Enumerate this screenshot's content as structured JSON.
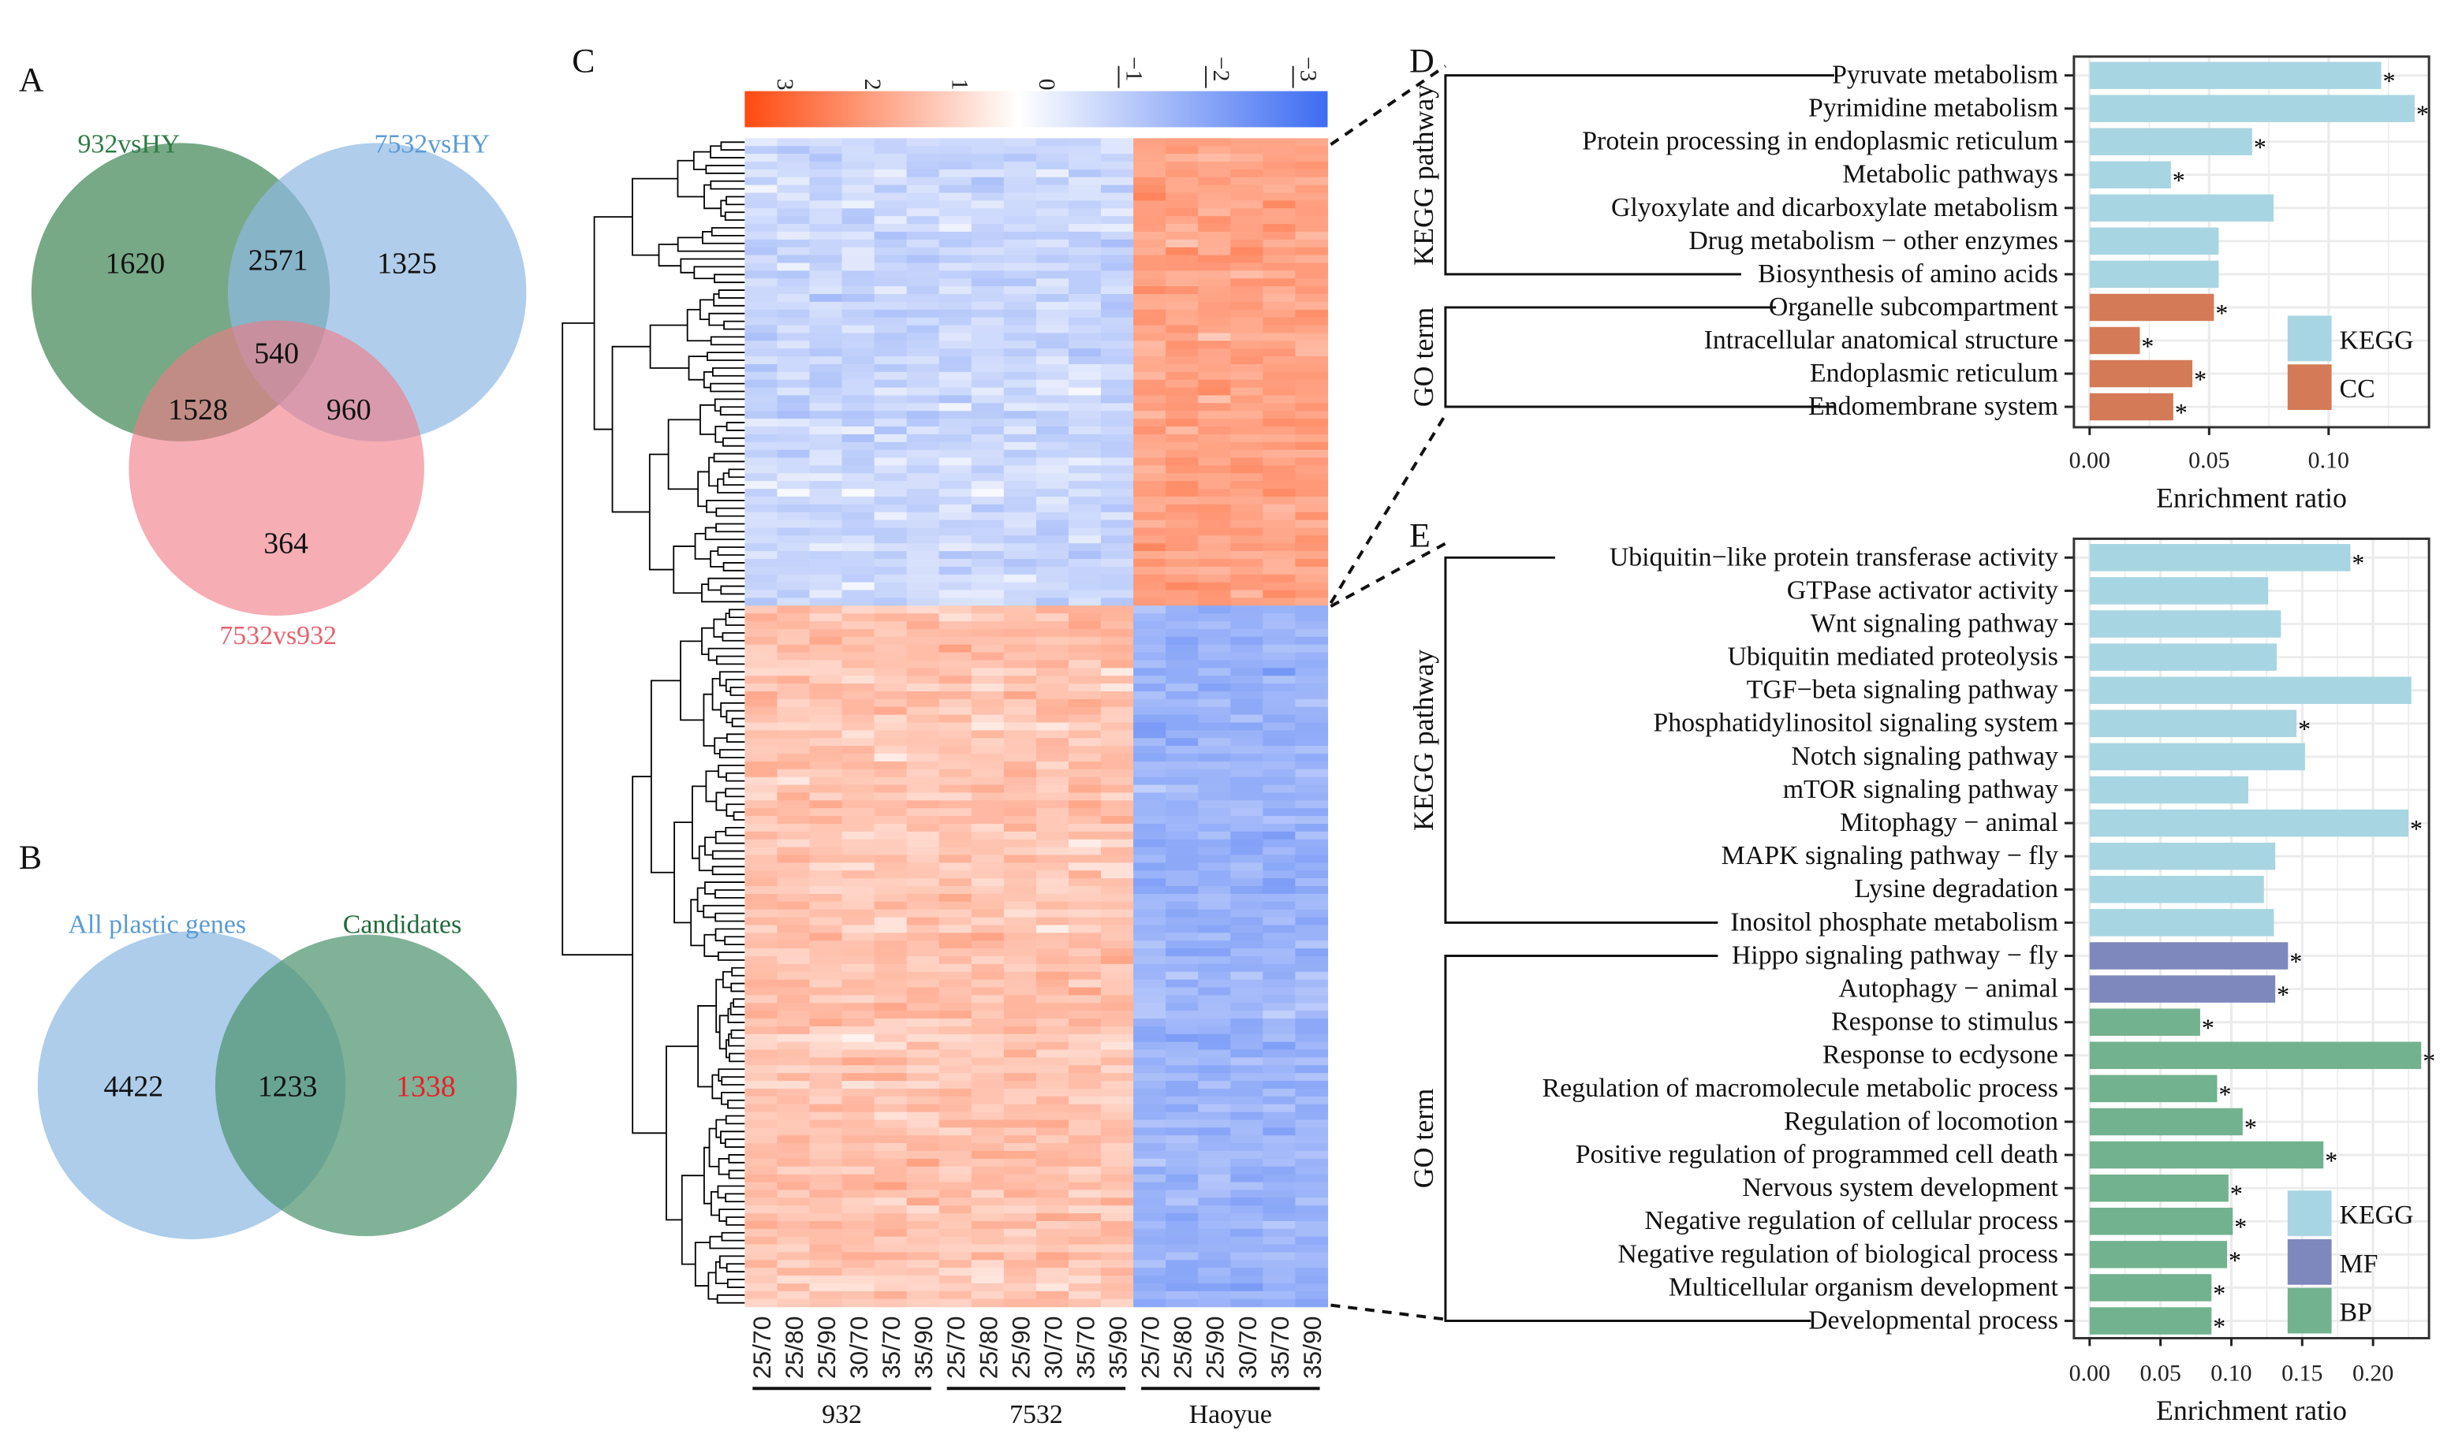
{
  "panels": {
    "a": "A",
    "b": "B",
    "c": "C",
    "d": "D",
    "e": "E"
  },
  "chart_data": [
    {
      "type": "venn",
      "panel": "A",
      "sets": [
        {
          "name": "932vsHY",
          "color": "#2e7d46"
        },
        {
          "name": "7532vsHY",
          "color": "#5b9bd5"
        },
        {
          "name": "7532vs932",
          "color": "#e8606e"
        }
      ],
      "regions": {
        "only_932vsHY": 1620,
        "only_7532vsHY": 1325,
        "only_7532vs932": 364,
        "932vsHY_7532vsHY": 2571,
        "932vsHY_7532vs932": 1528,
        "7532vsHY_7532vs932": 960,
        "all": 540
      }
    },
    {
      "type": "venn",
      "panel": "B",
      "sets": [
        {
          "name": "All plastic genes",
          "color": "#5b9bd5"
        },
        {
          "name": "Candidates",
          "color": "#1f6b3a"
        }
      ],
      "regions": {
        "only_all_plastic_genes": 4422,
        "both": 1233,
        "only_candidates": 1338
      },
      "highlight_color": "#e8202a"
    },
    {
      "type": "heatmap",
      "panel": "C",
      "color_scale": {
        "ticks": [
          "3",
          "2",
          "1",
          "0",
          "−1",
          "−2",
          "−3"
        ],
        "range": [
          3,
          -3
        ],
        "low_color": "#3d6cf2",
        "high_color": "#ff4a10"
      },
      "columns": [
        "25/70",
        "25/80",
        "25/90",
        "30/70",
        "35/70",
        "35/90",
        "25/70",
        "25/80",
        "25/90",
        "30/70",
        "35/70",
        "35/90",
        "25/70",
        "25/80",
        "25/90",
        "30/70",
        "35/70",
        "35/90"
      ],
      "groups": [
        "932",
        "7532",
        "Haoyue"
      ]
    },
    {
      "type": "bar",
      "orientation": "horizontal",
      "panel": "D",
      "xlabel": "Enrichment ratio",
      "xlim": [
        0,
        0.14
      ],
      "xticks": [
        "0.00",
        "0.05",
        "0.10"
      ],
      "xtick_values": [
        0,
        0.05,
        0.1
      ],
      "group_labels": [
        {
          "label": "KEGG pathway",
          "from": 0,
          "to": 6
        },
        {
          "label": "GO term",
          "from": 7,
          "to": 10
        }
      ],
      "legend": [
        {
          "label": "KEGG",
          "color": "#a8d5e2"
        },
        {
          "label": "CC",
          "color": "#d47a56"
        }
      ],
      "bars": [
        {
          "label": "Pyruvate metabolism",
          "value": 0.122,
          "cat": "KEGG",
          "sig": "*"
        },
        {
          "label": "Pyrimidine metabolism",
          "value": 0.136,
          "cat": "KEGG",
          "sig": "*"
        },
        {
          "label": "Protein processing in endoplasmic reticulum",
          "value": 0.068,
          "cat": "KEGG",
          "sig": "*"
        },
        {
          "label": "Metabolic pathways",
          "value": 0.034,
          "cat": "KEGG",
          "sig": "*"
        },
        {
          "label": "Glyoxylate and dicarboxylate metabolism",
          "value": 0.077,
          "cat": "KEGG",
          "sig": ""
        },
        {
          "label": "Drug metabolism − other enzymes",
          "value": 0.054,
          "cat": "KEGG",
          "sig": ""
        },
        {
          "label": "Biosynthesis of amino acids",
          "value": 0.054,
          "cat": "KEGG",
          "sig": ""
        },
        {
          "label": "Organelle subcompartment",
          "value": 0.052,
          "cat": "CC",
          "sig": "*"
        },
        {
          "label": "Intracellular anatomical structure",
          "value": 0.021,
          "cat": "CC",
          "sig": "*"
        },
        {
          "label": "Endoplasmic reticulum",
          "value": 0.043,
          "cat": "CC",
          "sig": "*"
        },
        {
          "label": "Endomembrane system",
          "value": 0.035,
          "cat": "CC",
          "sig": "*"
        }
      ]
    },
    {
      "type": "bar",
      "orientation": "horizontal",
      "panel": "E",
      "xlabel": "Enrichment ratio",
      "xlim": [
        0,
        0.24
      ],
      "xticks": [
        "0.00",
        "0.05",
        "0.10",
        "0.15",
        "0.20"
      ],
      "xtick_values": [
        0,
        0.05,
        0.1,
        0.15,
        0.2
      ],
      "group_labels": [
        {
          "label": "KEGG pathway",
          "from": 0,
          "to": 11
        },
        {
          "label": "GO term",
          "from": 12,
          "to": 23
        }
      ],
      "legend": [
        {
          "label": "KEGG",
          "color": "#a8d5e2"
        },
        {
          "label": "MF",
          "color": "#7f88bd"
        },
        {
          "label": "BP",
          "color": "#72b28f"
        }
      ],
      "bars": [
        {
          "label": "Ubiquitin−like protein transferase activity",
          "value": 0.184,
          "cat": "KEGG",
          "sig": "*"
        },
        {
          "label": "GTPase activator activity",
          "value": 0.126,
          "cat": "KEGG",
          "sig": ""
        },
        {
          "label": "Wnt signaling pathway",
          "value": 0.135,
          "cat": "KEGG",
          "sig": ""
        },
        {
          "label": "Ubiquitin mediated proteolysis",
          "value": 0.132,
          "cat": "KEGG",
          "sig": ""
        },
        {
          "label": "TGF−beta signaling pathway",
          "value": 0.227,
          "cat": "KEGG",
          "sig": ""
        },
        {
          "label": "Phosphatidylinositol signaling system",
          "value": 0.146,
          "cat": "KEGG",
          "sig": "*"
        },
        {
          "label": "Notch signaling pathway",
          "value": 0.152,
          "cat": "KEGG",
          "sig": ""
        },
        {
          "label": "mTOR signaling pathway",
          "value": 0.112,
          "cat": "KEGG",
          "sig": ""
        },
        {
          "label": "Mitophagy − animal",
          "value": 0.225,
          "cat": "KEGG",
          "sig": "*"
        },
        {
          "label": "MAPK signaling pathway − fly",
          "value": 0.131,
          "cat": "KEGG",
          "sig": ""
        },
        {
          "label": "Lysine degradation",
          "value": 0.123,
          "cat": "KEGG",
          "sig": ""
        },
        {
          "label": "Inositol phosphate metabolism",
          "value": 0.13,
          "cat": "KEGG",
          "sig": ""
        },
        {
          "label": "Hippo signaling pathway − fly",
          "value": 0.14,
          "cat": "MF",
          "sig": "*"
        },
        {
          "label": "Autophagy − animal",
          "value": 0.131,
          "cat": "MF",
          "sig": "*"
        },
        {
          "label": "Response to stimulus",
          "value": 0.078,
          "cat": "BP",
          "sig": "*"
        },
        {
          "label": "Response to ecdysone",
          "value": 0.234,
          "cat": "BP",
          "sig": "*"
        },
        {
          "label": "Regulation of macromolecule metabolic process",
          "value": 0.09,
          "cat": "BP",
          "sig": "*"
        },
        {
          "label": "Regulation of locomotion",
          "value": 0.108,
          "cat": "BP",
          "sig": "*"
        },
        {
          "label": "Positive regulation of programmed cell death",
          "value": 0.165,
          "cat": "BP",
          "sig": "*"
        },
        {
          "label": "Nervous system development",
          "value": 0.098,
          "cat": "BP",
          "sig": "*"
        },
        {
          "label": "Negative regulation of cellular process",
          "value": 0.101,
          "cat": "BP",
          "sig": "*"
        },
        {
          "label": "Negative regulation of biological process",
          "value": 0.097,
          "cat": "BP",
          "sig": "*"
        },
        {
          "label": "Multicellular organism development",
          "value": 0.086,
          "cat": "BP",
          "sig": "*"
        },
        {
          "label": "Developmental process",
          "value": 0.086,
          "cat": "BP",
          "sig": "*"
        }
      ]
    }
  ]
}
